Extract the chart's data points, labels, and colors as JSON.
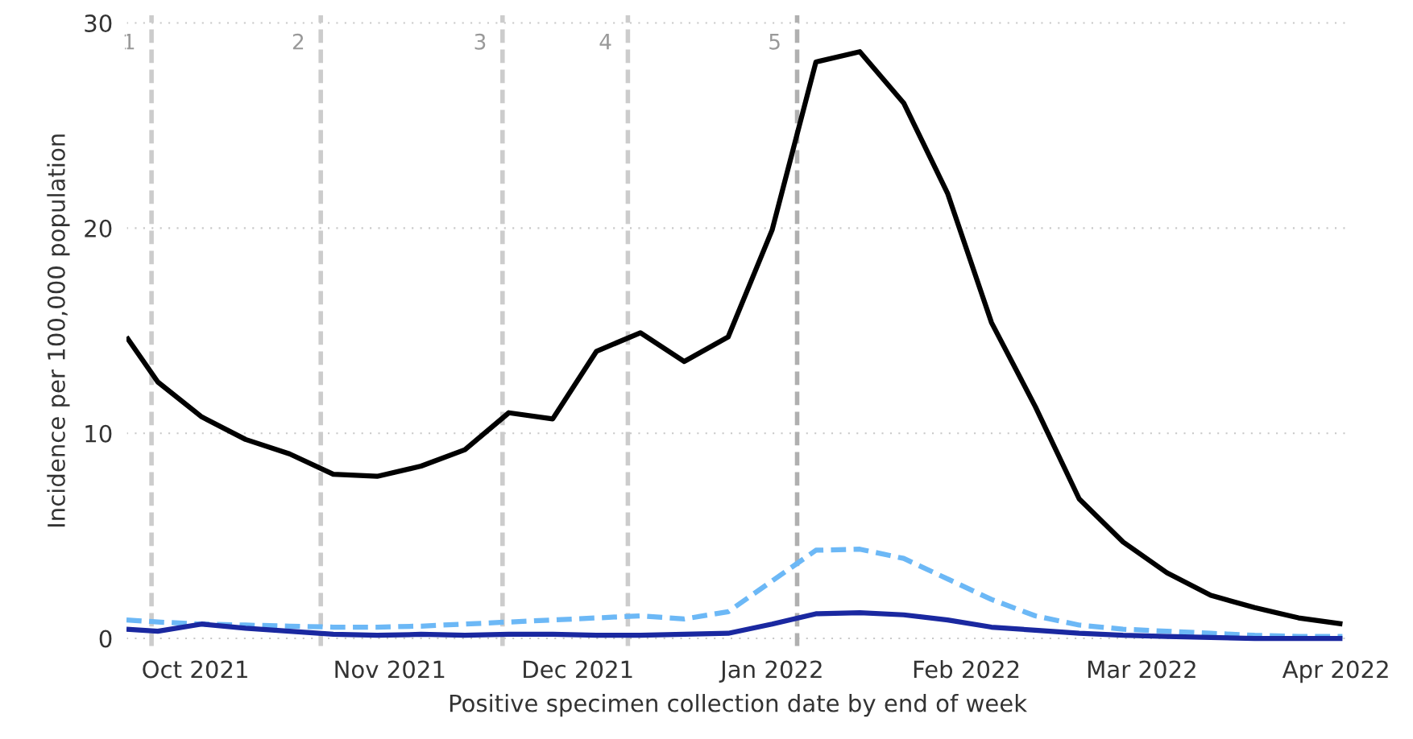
{
  "chart_data": {
    "type": "line",
    "xlabel": "Positive specimen collection date by end of week",
    "ylabel": "Incidence per 100,000 population",
    "x": [
      "2021-09-20",
      "2021-09-25",
      "2021-10-02",
      "2021-10-09",
      "2021-10-16",
      "2021-10-23",
      "2021-10-30",
      "2021-11-06",
      "2021-11-13",
      "2021-11-20",
      "2021-11-27",
      "2021-12-04",
      "2021-12-11",
      "2021-12-18",
      "2021-12-25",
      "2022-01-01",
      "2022-01-08",
      "2022-01-15",
      "2022-01-22",
      "2022-01-29",
      "2022-02-05",
      "2022-02-12",
      "2022-02-19",
      "2022-02-26",
      "2022-03-05",
      "2022-03-12",
      "2022-03-19",
      "2022-03-26",
      "2022-04-02"
    ],
    "series": [
      {
        "color": "#000000",
        "line_style": "solid",
        "values": [
          14.7,
          12.5,
          10.8,
          9.7,
          9.0,
          8.0,
          7.9,
          8.4,
          9.2,
          11.0,
          10.7,
          14.0,
          14.9,
          13.5,
          14.7,
          19.9,
          28.1,
          28.6,
          26.1,
          21.7,
          15.4,
          11.3,
          6.8,
          4.7,
          3.2,
          2.1,
          1.5,
          1.0,
          0.7
        ]
      },
      {
        "color": "#6cb8f6",
        "line_style": "dashed",
        "values": [
          0.9,
          0.8,
          0.7,
          0.65,
          0.6,
          0.55,
          0.55,
          0.6,
          0.7,
          0.8,
          0.9,
          1.0,
          1.1,
          0.95,
          1.3,
          2.8,
          4.3,
          4.35,
          3.9,
          2.9,
          1.9,
          1.1,
          0.65,
          0.45,
          0.35,
          0.25,
          0.15,
          0.1,
          0.1
        ]
      },
      {
        "color": "#1a28a0",
        "line_style": "solid",
        "values": [
          0.45,
          0.35,
          0.7,
          0.5,
          0.35,
          0.2,
          0.15,
          0.2,
          0.15,
          0.2,
          0.2,
          0.15,
          0.15,
          0.2,
          0.25,
          0.7,
          1.2,
          1.25,
          1.15,
          0.9,
          0.55,
          0.4,
          0.25,
          0.15,
          0.1,
          0.05,
          0.0,
          0.0,
          0.0
        ]
      }
    ],
    "xlim": [
      "2021-09-20",
      "2022-04-03"
    ],
    "xticks": [
      {
        "value": "2021-10-01",
        "label": "Oct 2021"
      },
      {
        "value": "2021-11-01",
        "label": "Nov 2021"
      },
      {
        "value": "2021-12-01",
        "label": "Dec 2021"
      },
      {
        "value": "2022-01-01",
        "label": "Jan 2022"
      },
      {
        "value": "2022-02-01",
        "label": "Feb 2022"
      },
      {
        "value": "2022-03-01",
        "label": "Mar 2022"
      },
      {
        "value": "2022-04-01",
        "label": "Apr 2022"
      }
    ],
    "ylim": [
      -0.4,
      30.4
    ],
    "yticks": [
      0,
      10,
      20,
      30
    ],
    "grid": "y",
    "marker": "none",
    "ref_lines": [
      {
        "axis": "x",
        "value": "2021-09-24",
        "label": "1",
        "color": "#cccccc",
        "line_style": "dashed"
      },
      {
        "axis": "x",
        "value": "2021-10-21",
        "label": "2",
        "color": "#cccccc",
        "line_style": "dashed"
      },
      {
        "axis": "x",
        "value": "2021-11-19",
        "label": "3",
        "color": "#cccccc",
        "line_style": "dashed"
      },
      {
        "axis": "x",
        "value": "2021-12-09",
        "label": "4",
        "color": "#cccccc",
        "line_style": "dashed"
      },
      {
        "axis": "x",
        "value": "2022-01-05",
        "label": "5",
        "color": "#b0b0b0",
        "line_style": "dashed"
      }
    ]
  }
}
